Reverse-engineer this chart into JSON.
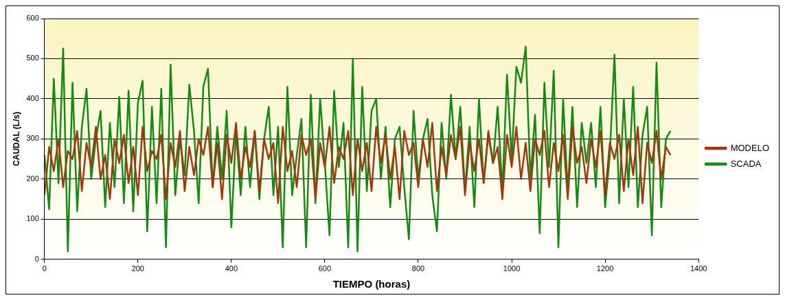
{
  "chart_data": {
    "type": "line",
    "xlabel": "TIEMPO (horas)",
    "ylabel": "CAUDAL (L/s)",
    "x": [
      0,
      10,
      20,
      30,
      40,
      50,
      60,
      70,
      80,
      90,
      100,
      110,
      120,
      130,
      140,
      150,
      160,
      170,
      180,
      190,
      200,
      210,
      220,
      230,
      240,
      250,
      260,
      270,
      280,
      290,
      300,
      310,
      320,
      330,
      340,
      350,
      360,
      370,
      380,
      390,
      400,
      410,
      420,
      430,
      440,
      450,
      460,
      470,
      480,
      490,
      500,
      510,
      520,
      530,
      540,
      550,
      560,
      570,
      580,
      590,
      600,
      610,
      620,
      630,
      640,
      650,
      660,
      670,
      680,
      690,
      700,
      710,
      720,
      730,
      740,
      750,
      760,
      770,
      780,
      790,
      800,
      810,
      820,
      830,
      840,
      850,
      860,
      870,
      880,
      890,
      900,
      910,
      920,
      930,
      940,
      950,
      960,
      970,
      980,
      990,
      1000,
      1010,
      1020,
      1030,
      1040,
      1050,
      1060,
      1070,
      1080,
      1090,
      1100,
      1110,
      1120,
      1130,
      1140,
      1150,
      1160,
      1170,
      1180,
      1190,
      1200,
      1210,
      1220,
      1230,
      1240,
      1250,
      1260,
      1270,
      1280,
      1290,
      1300,
      1310,
      1320,
      1330,
      1340
    ],
    "series": [
      {
        "name": "SCADA",
        "color": "#138a13",
        "values": [
          260,
          125,
          450,
          190,
          525,
          20,
          440,
          120,
          330,
          425,
          200,
          300,
          370,
          130,
          340,
          180,
          405,
          140,
          420,
          120,
          390,
          445,
          70,
          380,
          140,
          425,
          30,
          485,
          160,
          300,
          210,
          435,
          320,
          140,
          430,
          475,
          180,
          330,
          200,
          370,
          80,
          320,
          160,
          330,
          180,
          320,
          150,
          300,
          380,
          160,
          330,
          30,
          430,
          160,
          260,
          350,
          30,
          410,
          140,
          400,
          240,
          60,
          420,
          230,
          340,
          30,
          500,
          20,
          430,
          170,
          370,
          400,
          200,
          330,
          130,
          300,
          330,
          180,
          50,
          370,
          200,
          300,
          350,
          160,
          70,
          340,
          200,
          410,
          250,
          380,
          170,
          330,
          130,
          400,
          190,
          310,
          240,
          380,
          170,
          460,
          250,
          480,
          440,
          530,
          200,
          360,
          65,
          440,
          230,
          470,
          30,
          400,
          170,
          380,
          130,
          340,
          240,
          340,
          180,
          380,
          130,
          260,
          510,
          140,
          400,
          180,
          430,
          130,
          310,
          380,
          60,
          490,
          130,
          300,
          320
        ]
      },
      {
        "name": "MODELO",
        "color": "#a0380f",
        "values": [
          160,
          280,
          220,
          300,
          180,
          270,
          250,
          320,
          170,
          290,
          230,
          330,
          200,
          260,
          150,
          300,
          240,
          310,
          190,
          280,
          160,
          330,
          220,
          270,
          250,
          310,
          150,
          290,
          230,
          320,
          170,
          280,
          210,
          300,
          260,
          330,
          180,
          290,
          150,
          310,
          240,
          340,
          200,
          280,
          230,
          320,
          170,
          300,
          250,
          290,
          140,
          330,
          220,
          270,
          180,
          310,
          260,
          300,
          150,
          290,
          230,
          330,
          190,
          280,
          250,
          320,
          160,
          300,
          220,
          290,
          170,
          330,
          240,
          310,
          200,
          280,
          150,
          320,
          260,
          290,
          180,
          300,
          230,
          340,
          170,
          280,
          210,
          310,
          250,
          330,
          160,
          290,
          220,
          300,
          190,
          320,
          240,
          280,
          150,
          310,
          230,
          330,
          200,
          290,
          170,
          300,
          260,
          320,
          180,
          290,
          220,
          310,
          150,
          330,
          240,
          280,
          190,
          300,
          230,
          320,
          160,
          290,
          250,
          310,
          170,
          300,
          210,
          330,
          140,
          290,
          240,
          320,
          200,
          280,
          260
        ]
      }
    ],
    "xlim": [
      0,
      1400
    ],
    "xticks": [
      0,
      200,
      400,
      600,
      800,
      1000,
      1200,
      1400
    ],
    "ylim": [
      0,
      600
    ],
    "yticks": [
      0,
      100,
      200,
      300,
      400,
      500,
      600
    ],
    "grid": "y",
    "legend": "right",
    "marker": "none",
    "line_style": "solid"
  }
}
